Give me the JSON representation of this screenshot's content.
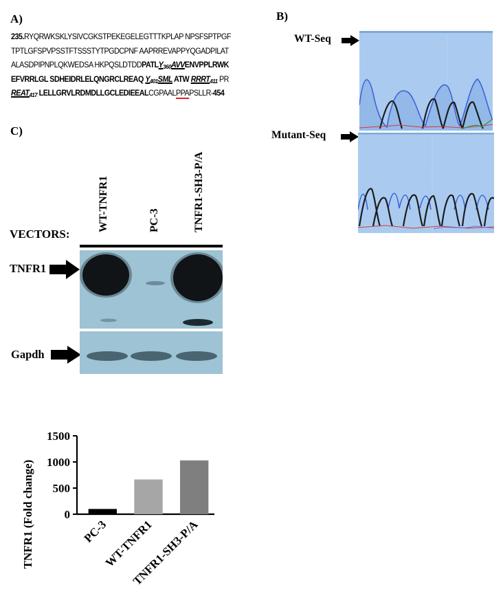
{
  "panels": {
    "a": "A)",
    "b": "B)",
    "c": "C)"
  },
  "sequence": {
    "line1": {
      "start": "235.",
      "text": "RYQRWKSKLYSIVCGKSTPEKEGELEGTTTKPLAP NPSFSPTPGF"
    },
    "line2": {
      "text": "TPTLGFSPVPSSTFTSSSTYTPGDCPNF AAPRREVAPPYQGADPILAT"
    },
    "line3": {
      "plain": "ALASDPIPNPLQKWEDSA HKPQSLDTDD",
      "bold1": "PATL",
      "u_pre": "Y",
      "u_sub": "360",
      "u_post": "AVV",
      "bold2": "ENVPPLRWK"
    },
    "line4": {
      "bold1": "EFVRRLGL SDHEIDRLELQNGRCLREAQ ",
      "u1_pre": "Y",
      "u1_sub": "401",
      "u1_post": "SML",
      "mid": " ATW ",
      "u2_pre": "RRRT",
      "u2_sub": "411",
      "end": " PR"
    },
    "line5": {
      "u_pre": "REAT",
      "u_sub": "417",
      "bold": " LELLGRVLRDMDLLGCLEDIEEAL",
      "plain1": "CGPAAL",
      "red": "PPA",
      "plain2": "PSLLR-",
      "end": "454"
    }
  },
  "panel_b": {
    "wt_label": "WT-Seq",
    "mutant_label": "Mutant-Seq"
  },
  "panel_c": {
    "lanes": [
      "WT-TNFR1",
      "PC-3",
      "TNFR1-SH3-P/A"
    ],
    "vectors_label": "VECTORS:",
    "blots": [
      {
        "label": "TNFR1",
        "intensities": {
          "WT-TNFR1": "strong",
          "PC-3": "faint",
          "TNFR1-SH3-P/A": "strong"
        }
      },
      {
        "label": "Gapdh",
        "intensities": {
          "WT-TNFR1": "equal",
          "PC-3": "equal",
          "TNFR1-SH3-P/A": "equal"
        }
      }
    ]
  },
  "chart_data": {
    "type": "bar",
    "categories": [
      "PC-3",
      "WT-TNFR1",
      "TNFR1-SH3-P/A"
    ],
    "values": [
      100,
      665,
      1030
    ],
    "colors": [
      "#000000",
      "#a6a6a6",
      "#7f7f7f"
    ],
    "title": "",
    "xlabel": "",
    "ylabel": "TNFR1 (Fold change)",
    "ylim": [
      0,
      1500
    ],
    "yticks": [
      0,
      500,
      1000,
      1500
    ],
    "grid": false
  }
}
